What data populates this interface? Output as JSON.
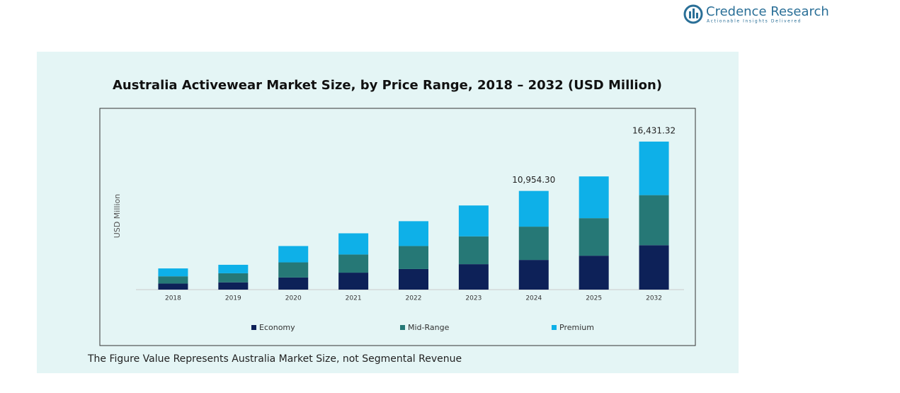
{
  "brand": {
    "name": "Credence Research",
    "tagline": "Actionable Insights Delivered"
  },
  "chart_data": {
    "type": "stacked-bar",
    "title": "Australia Activewear Market Size, by Price Range, 2018 – 2032 (USD Million)",
    "y_label": "USD Million",
    "categories": [
      "2018",
      "2019",
      "2020",
      "2021",
      "2022",
      "2023",
      "2024",
      "2025",
      "2032"
    ],
    "series": [
      {
        "name": "Economy",
        "color": "#0d2158",
        "values": [
          672,
          806,
          1344,
          1882,
          2285,
          2822,
          3293.0,
          3763,
          4929.4
        ]
      },
      {
        "name": "Mid-Range",
        "color": "#267876",
        "values": [
          806,
          1008,
          1680,
          2016,
          2554,
          3091,
          3696.2,
          4166,
          5555.29
        ]
      },
      {
        "name": "Premium",
        "color": "#0eb0e8",
        "values": [
          874,
          941,
          1814,
          2352,
          2755,
          3427,
          3965.1,
          4637,
          5946.63
        ]
      }
    ],
    "annotations": [
      {
        "x": "2024",
        "value": 10954.3,
        "label": "10,954.30"
      },
      {
        "x": "2032",
        "value": 16431.32,
        "label": "16,431.32"
      }
    ],
    "ylim": [
      0,
      18000
    ],
    "note": "The Figure Value Represents Australia Market Size, not Segmental Revenue"
  }
}
